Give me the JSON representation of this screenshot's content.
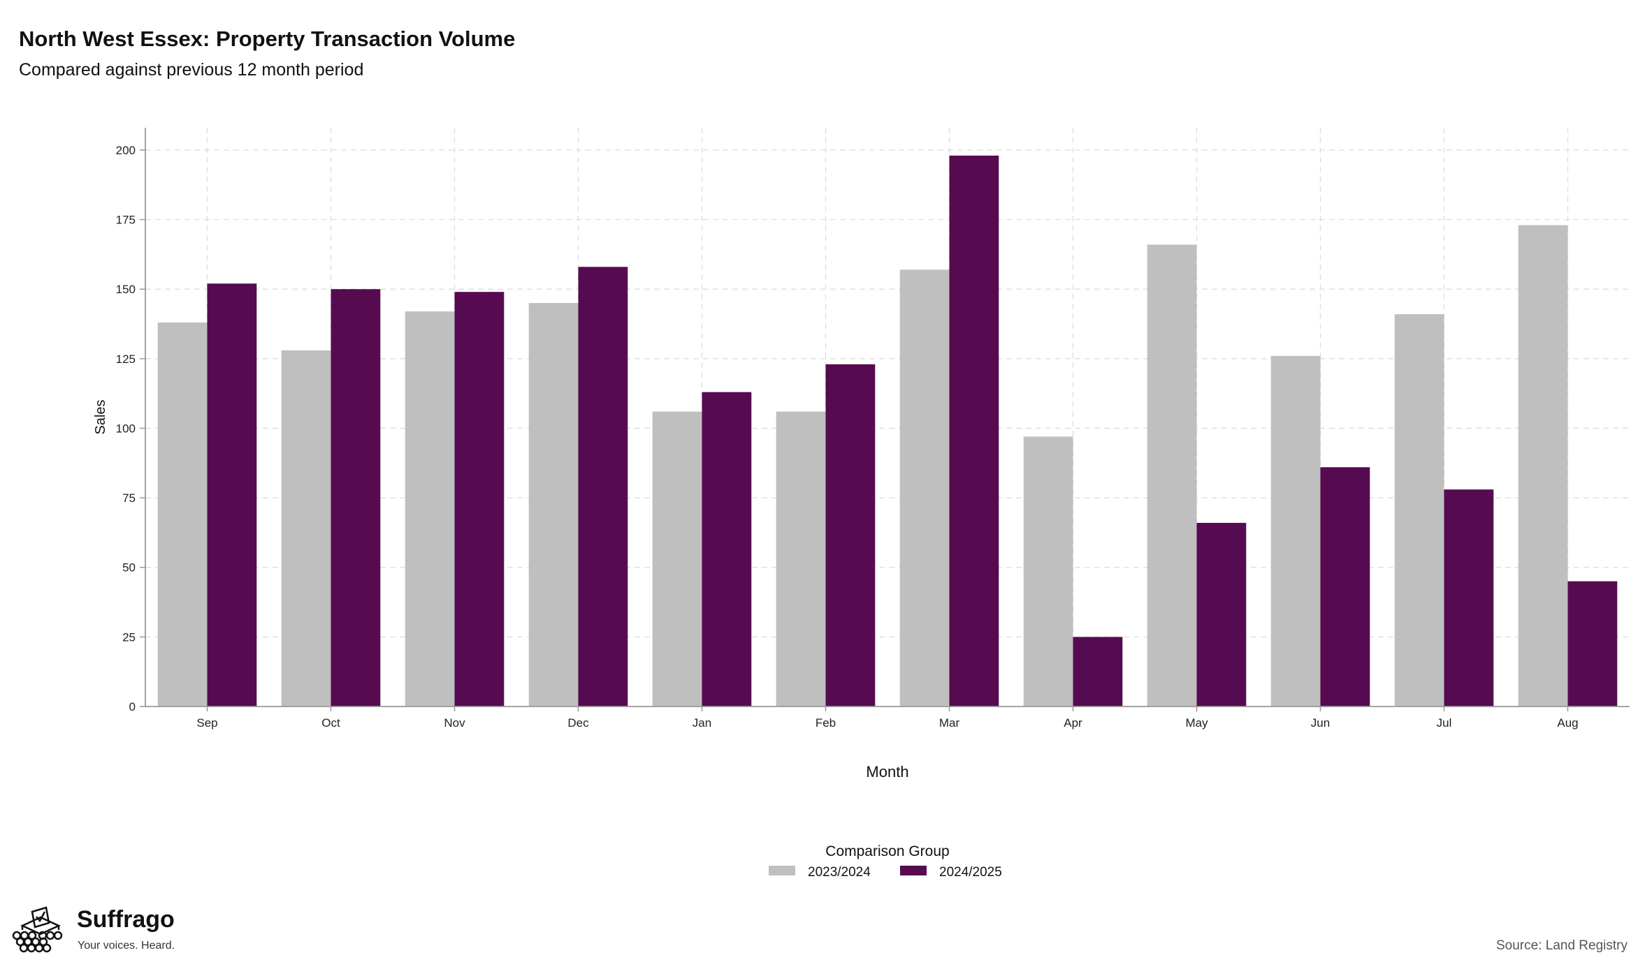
{
  "page": {
    "title": "North West Essex: Property Transaction Volume",
    "subtitle": "Compared against previous 12 month period",
    "source": "Source: Land Registry",
    "brand": {
      "name": "Suffrago",
      "tagline": "Your voices. Heard."
    }
  },
  "colors": {
    "series_2023_2024": "#bfbfbf",
    "series_2024_2025": "#560b51",
    "grid": "#dddddd",
    "axis": "#999999"
  },
  "chart_data": {
    "type": "bar",
    "xlabel": "Month",
    "ylabel": "Sales",
    "ylim": [
      0,
      208
    ],
    "yticks": [
      0,
      25,
      50,
      75,
      100,
      125,
      150,
      175,
      200
    ],
    "grid": true,
    "legend_title": "Comparison Group",
    "legend_position": "bottom",
    "categories": [
      "Sep",
      "Oct",
      "Nov",
      "Dec",
      "Jan",
      "Feb",
      "Mar",
      "Apr",
      "May",
      "Jun",
      "Jul",
      "Aug"
    ],
    "series": [
      {
        "name": "2023/2024",
        "values": [
          138,
          128,
          142,
          145,
          106,
          106,
          157,
          97,
          166,
          126,
          141,
          173
        ]
      },
      {
        "name": "2024/2025",
        "values": [
          152,
          150,
          149,
          158,
          113,
          123,
          198,
          25,
          66,
          86,
          78,
          45
        ]
      }
    ]
  }
}
